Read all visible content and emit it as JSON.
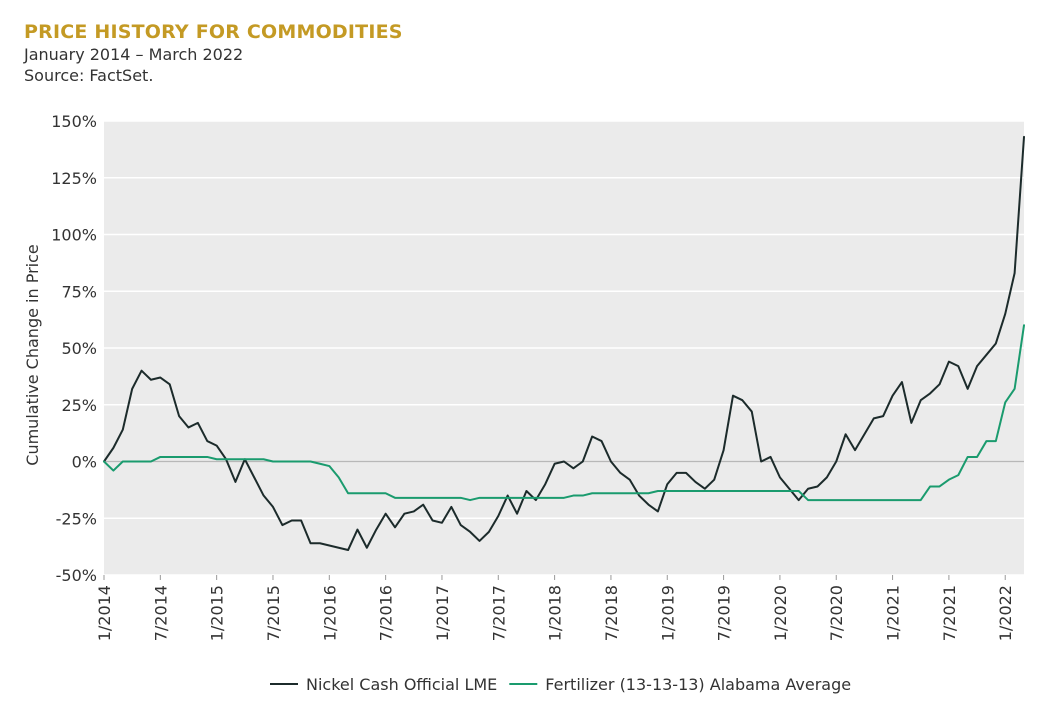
{
  "chart_data": {
    "type": "line",
    "title": "PRICE HISTORY FOR COMMODITIES",
    "subtitle": "January 2014 – March 2022",
    "source": "Source: FactSet.",
    "xlabel": "",
    "ylabel": "Cumulative Change in Price",
    "ylim": [
      -50,
      150
    ],
    "yticks": [
      -50,
      -25,
      0,
      25,
      50,
      75,
      100,
      125,
      150
    ],
    "ytick_labels": [
      "-50%",
      "-25%",
      "0%",
      "25%",
      "50%",
      "75%",
      "100%",
      "125%",
      "150%"
    ],
    "x_start": "1/2014",
    "x_end": "3/2022",
    "xlim": [
      0,
      98
    ],
    "xticks": [
      0,
      6,
      12,
      18,
      24,
      30,
      36,
      42,
      48,
      54,
      60,
      66,
      72,
      78,
      84,
      90,
      96
    ],
    "xtick_labels": [
      "1/2014",
      "7/2014",
      "1/2015",
      "7/2015",
      "1/2016",
      "7/2016",
      "1/2017",
      "7/2017",
      "1/2018",
      "7/2018",
      "1/2019",
      "7/2019",
      "1/2020",
      "7/2020",
      "1/2021",
      "7/2021",
      "1/2022"
    ],
    "grid": true,
    "legend_position": "bottom",
    "series": [
      {
        "name": "Nickel Cash Official LME",
        "color": "#1C2B2B",
        "values": [
          0,
          6,
          14,
          32,
          40,
          36,
          37,
          34,
          20,
          15,
          17,
          9,
          7,
          1,
          -9,
          1,
          -7,
          -15,
          -20,
          -28,
          -26,
          -26,
          -36,
          -36,
          -37,
          -38,
          -39,
          -30,
          -38,
          -30,
          -23,
          -29,
          -23,
          -22,
          -19,
          -26,
          -27,
          -20,
          -28,
          -31,
          -35,
          -31,
          -24,
          -15,
          -23,
          -13,
          -17,
          -10,
          -1,
          0,
          -3,
          0,
          11,
          9,
          0,
          -5,
          -8,
          -15,
          -19,
          -22,
          -10,
          -5,
          -5,
          -9,
          -12,
          -8,
          5,
          29,
          27,
          22,
          0,
          2,
          -7,
          -12,
          -17,
          -12,
          -11,
          -7,
          0,
          12,
          5,
          12,
          19,
          20,
          29,
          35,
          17,
          27,
          30,
          34,
          44,
          42,
          32,
          42,
          47,
          52,
          65,
          83,
          143
        ]
      },
      {
        "name": "Fertilizer (13-13-13) Alabama Average",
        "color": "#1A9B6E",
        "values": [
          0,
          -4,
          0,
          0,
          0,
          0,
          2,
          2,
          2,
          2,
          2,
          2,
          1,
          1,
          1,
          1,
          1,
          1,
          0,
          0,
          0,
          0,
          0,
          -1,
          -2,
          -7,
          -14,
          -14,
          -14,
          -14,
          -14,
          -16,
          -16,
          -16,
          -16,
          -16,
          -16,
          -16,
          -16,
          -17,
          -16,
          -16,
          -16,
          -16,
          -16,
          -16,
          -16,
          -16,
          -16,
          -16,
          -15,
          -15,
          -14,
          -14,
          -14,
          -14,
          -14,
          -14,
          -14,
          -13,
          -13,
          -13,
          -13,
          -13,
          -13,
          -13,
          -13,
          -13,
          -13,
          -13,
          -13,
          -13,
          -13,
          -13,
          -13,
          -17,
          -17,
          -17,
          -17,
          -17,
          -17,
          -17,
          -17,
          -17,
          -17,
          -17,
          -17,
          -17,
          -11,
          -11,
          -8,
          -6,
          2,
          2,
          9,
          9,
          26,
          32,
          60
        ]
      }
    ]
  }
}
